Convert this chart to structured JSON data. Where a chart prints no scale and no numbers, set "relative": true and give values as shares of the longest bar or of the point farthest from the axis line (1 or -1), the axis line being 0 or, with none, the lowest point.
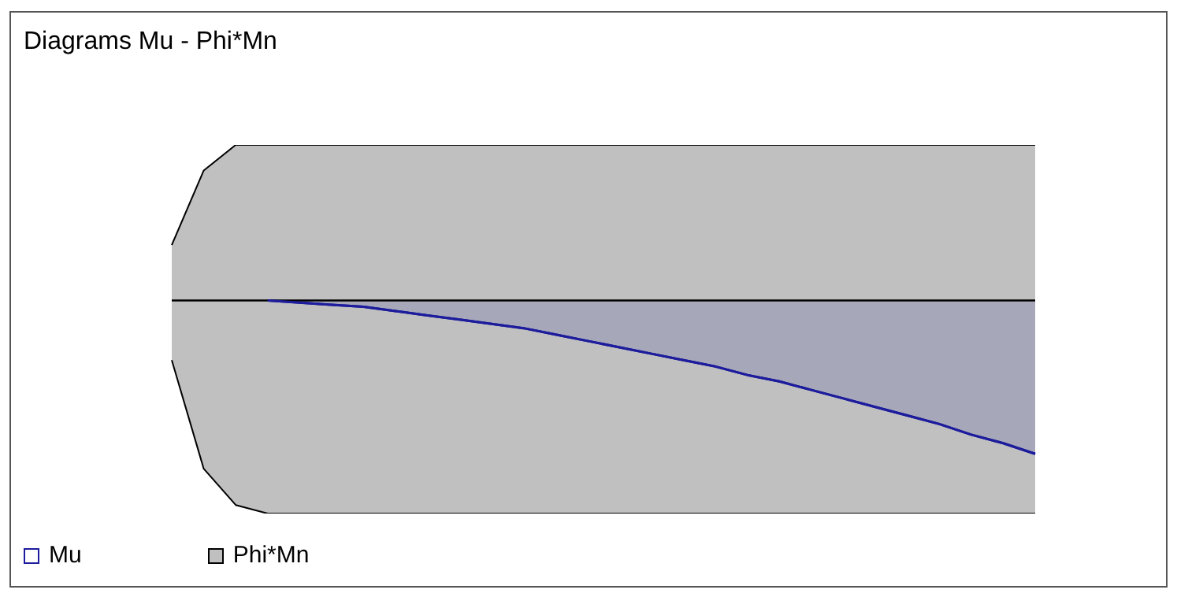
{
  "chart_data": {
    "type": "area",
    "title": "Diagrams Mu - Phi*Mn",
    "relative": true,
    "legend": "bottom left",
    "marker": "none",
    "categories": [
      null,
      null,
      null,
      null,
      null,
      null,
      null,
      null,
      null,
      null,
      null,
      null,
      null,
      null,
      null,
      null,
      null,
      null,
      null,
      null,
      null,
      null,
      null,
      null,
      null,
      null,
      null,
      null
    ],
    "series": [
      {
        "name": "Mu",
        "color": "#1c1c9c",
        "values": [
          null,
          null,
          null,
          0,
          -0.01,
          -0.02,
          -0.03,
          -0.05,
          -0.07,
          -0.09,
          -0.11,
          -0.13,
          -0.16,
          -0.19,
          -0.22,
          -0.25,
          -0.28,
          -0.31,
          -0.35,
          -0.38,
          -0.42,
          -0.46,
          -0.5,
          -0.54,
          -0.58,
          -0.63,
          -0.67,
          -0.72
        ]
      },
      {
        "name": "Phi*Mn",
        "color": "#c0c0c0",
        "values": [
          0.26,
          0.61,
          0.73,
          0.73,
          0.73,
          0.73,
          0.73,
          0.73,
          0.73,
          0.73,
          0.73,
          0.73,
          0.73,
          0.73,
          0.73,
          0.73,
          0.73,
          0.73,
          0.73,
          0.73,
          0.73,
          0.73,
          0.73,
          0.73,
          0.73,
          0.73,
          0.73,
          0.73
        ]
      },
      {
        "color": "#c0c0c0",
        "values": [
          -0.28,
          -0.79,
          -0.96,
          -1,
          -1,
          -1,
          -1,
          -1,
          -1,
          -1,
          -1,
          -1,
          -1,
          -1,
          -1,
          -1,
          -1,
          -1,
          -1,
          -1,
          -1,
          -1,
          -1,
          -1,
          -1,
          -1,
          -1,
          -1
        ]
      }
    ]
  }
}
